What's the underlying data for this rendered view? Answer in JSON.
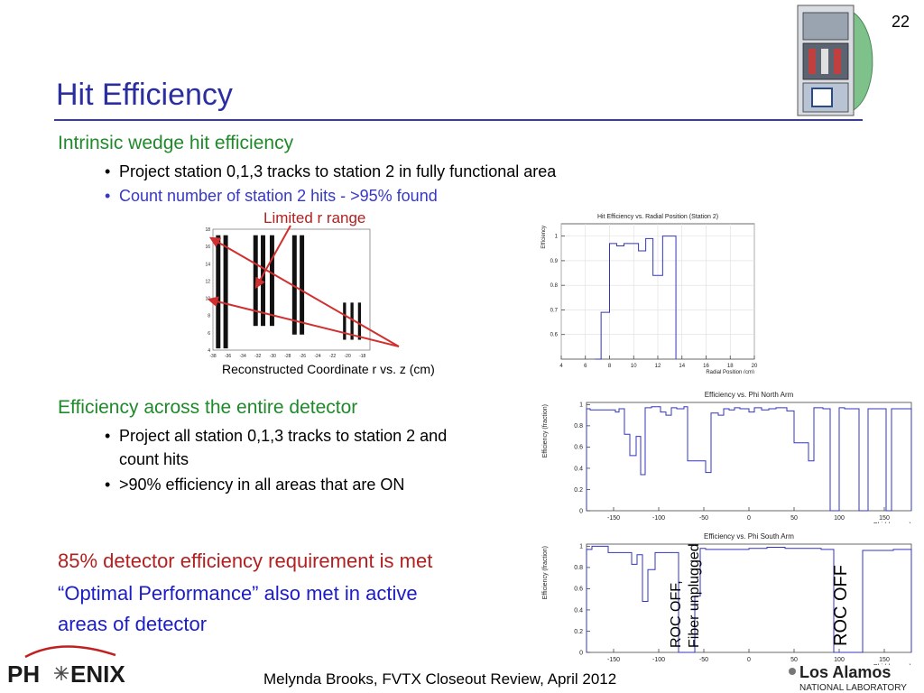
{
  "slide": {
    "page_number": "22",
    "title": "Hit Efficiency",
    "section1": {
      "heading": "Intrinsic wedge hit efficiency",
      "bullets": [
        "Project station 0,1,3 tracks to station 2 in fully functional area",
        "Count number of station 2 hits - >95% found"
      ]
    },
    "annotation_limited": "Limited r range",
    "coord_caption": "Reconstructed Coordinate r vs. z (cm)",
    "section2": {
      "heading": "Efficiency across the entire detector",
      "bullets": [
        "Project all station 0,1,3 tracks to station 2 and",
        "count hits",
        ">90% efficiency in all areas that are ON"
      ]
    },
    "conclusion": {
      "line1": "85% detector efficiency requirement is met",
      "line2": "“Optimal Performance” also met in active",
      "line3": "areas of detector"
    },
    "roc_off_fiber_1": "ROC OFF,",
    "roc_off_fiber_2": "Fiber unplugged",
    "roc_off": "ROC OFF",
    "footer": "Melynda Brooks, FVTX Closeout Review, April 2012",
    "logos": {
      "phenix_left": "PH",
      "phenix_right": "ENIX",
      "lanl_top": "Los Alamos",
      "lanl_bottom": "NATIONAL LABORATORY"
    }
  },
  "colors": {
    "title": "#2a2e9e",
    "green": "#1f8a2a",
    "blue": "#3737c8",
    "red": "#b22020",
    "hist": "#3434c0",
    "arrow": "#d03030"
  },
  "chart_data": [
    {
      "type": "scatter",
      "title": "",
      "xlabel": "",
      "ylabel": "",
      "xlim": [
        -38,
        -17
      ],
      "ylim": [
        4,
        18
      ],
      "xticks": [
        -38,
        -36,
        -34,
        -32,
        -30,
        -28,
        -26,
        -24,
        -22,
        -20,
        -18
      ],
      "yticks": [
        4,
        6,
        8,
        10,
        12,
        14,
        16,
        18
      ],
      "bands": [
        {
          "x0": -37.6,
          "x1": -37.0,
          "y0": 4.2,
          "y1": 17.3
        },
        {
          "x0": -36.6,
          "x1": -36.0,
          "y0": 4.2,
          "y1": 17.3
        },
        {
          "x0": -32.6,
          "x1": -32.0,
          "y0": 6.8,
          "y1": 17.3
        },
        {
          "x0": -31.6,
          "x1": -31.0,
          "y0": 6.8,
          "y1": 17.3
        },
        {
          "x0": -30.4,
          "x1": -29.8,
          "y0": 6.8,
          "y1": 17.3
        },
        {
          "x0": -27.4,
          "x1": -26.8,
          "y0": 5.8,
          "y1": 17.3
        },
        {
          "x0": -26.4,
          "x1": -25.8,
          "y0": 5.8,
          "y1": 17.3
        },
        {
          "x0": -20.6,
          "x1": -20.2,
          "y0": 5.2,
          "y1": 9.5
        },
        {
          "x0": -19.6,
          "x1": -19.2,
          "y0": 5.2,
          "y1": 9.5
        },
        {
          "x0": -18.6,
          "x1": -18.2,
          "y0": 5.2,
          "y1": 9.5
        }
      ]
    },
    {
      "type": "line",
      "title": "Hit Efficiency vs. Radial Position (Station 2)",
      "xlabel": "Radial Position (cm)",
      "ylabel": "Efficiency",
      "xlim": [
        4,
        20
      ],
      "ylim": [
        0.5,
        1.05
      ],
      "xticks": [
        4,
        6,
        8,
        10,
        12,
        14,
        16,
        18,
        20
      ],
      "yticks": [
        0.6,
        0.7,
        0.8,
        0.9,
        1
      ],
      "edges": [
        4.0,
        6.8,
        7.3,
        8.0,
        8.6,
        9.2,
        10.4,
        11.0,
        11.6,
        12.4,
        12.8,
        13.5,
        20.0
      ],
      "values": [
        null,
        0.5,
        0.69,
        0.97,
        0.96,
        0.97,
        0.94,
        0.99,
        0.84,
        1.0,
        1.0,
        null
      ]
    },
    {
      "type": "line",
      "title": "Efficiency vs. Phi North Arm",
      "xlabel": "Phi (degrees)",
      "ylabel": "Efficiency (fraction)",
      "xlim": [
        -180,
        180
      ],
      "ylim": [
        0,
        1.02
      ],
      "xticks": [
        -150,
        -100,
        -50,
        0,
        50,
        100,
        150
      ],
      "yticks": [
        0,
        0.2,
        0.4,
        0.6,
        0.8,
        1
      ],
      "edges": [
        -180,
        -176,
        -148,
        -144,
        -138,
        -132,
        -125,
        -120,
        -115,
        -108,
        -98,
        -92,
        -86,
        -80,
        -72,
        -68,
        -48,
        -42,
        -34,
        -28,
        -22,
        -16,
        -10,
        0,
        6,
        14,
        22,
        30,
        42,
        50,
        66,
        72,
        82,
        90,
        100,
        106,
        116,
        122,
        132,
        138,
        152,
        158,
        172,
        180
      ],
      "values": [
        0.96,
        0.95,
        0.93,
        0.96,
        0.72,
        0.52,
        0.7,
        0.34,
        0.97,
        0.98,
        0.93,
        0.9,
        0.97,
        0.96,
        0.98,
        0.47,
        0.36,
        0.92,
        0.9,
        0.96,
        0.95,
        0.97,
        0.96,
        0.93,
        0.97,
        0.95,
        0.96,
        0.97,
        0.94,
        0.64,
        0.47,
        0.97,
        0.96,
        0.0,
        0.97,
        0.96,
        0.96,
        0.0,
        0.96,
        0.96,
        0.0,
        0.96,
        0.96
      ]
    },
    {
      "type": "line",
      "title": "Efficiency vs. Phi South Arm",
      "xlabel": "Phi (degrees)",
      "ylabel": "Efficiency (fraction)",
      "xlim": [
        -180,
        180
      ],
      "ylim": [
        0,
        1.02
      ],
      "xticks": [
        -150,
        -100,
        -50,
        0,
        50,
        100,
        150
      ],
      "yticks": [
        0,
        0.2,
        0.4,
        0.6,
        0.8,
        1
      ],
      "edges": [
        -180,
        -174,
        -156,
        -130,
        -124,
        -118,
        -112,
        -104,
        -84,
        -78,
        -60,
        -54,
        -48,
        0,
        20,
        40,
        80,
        94,
        126,
        160,
        180
      ],
      "values": [
        0.97,
        1.0,
        0.94,
        0.83,
        0.92,
        0.48,
        0.78,
        0.94,
        0.94,
        0.0,
        0.53,
        0.98,
        0.97,
        0.98,
        0.99,
        0.98,
        0.97,
        0.0,
        0.96,
        0.97
      ]
    }
  ]
}
